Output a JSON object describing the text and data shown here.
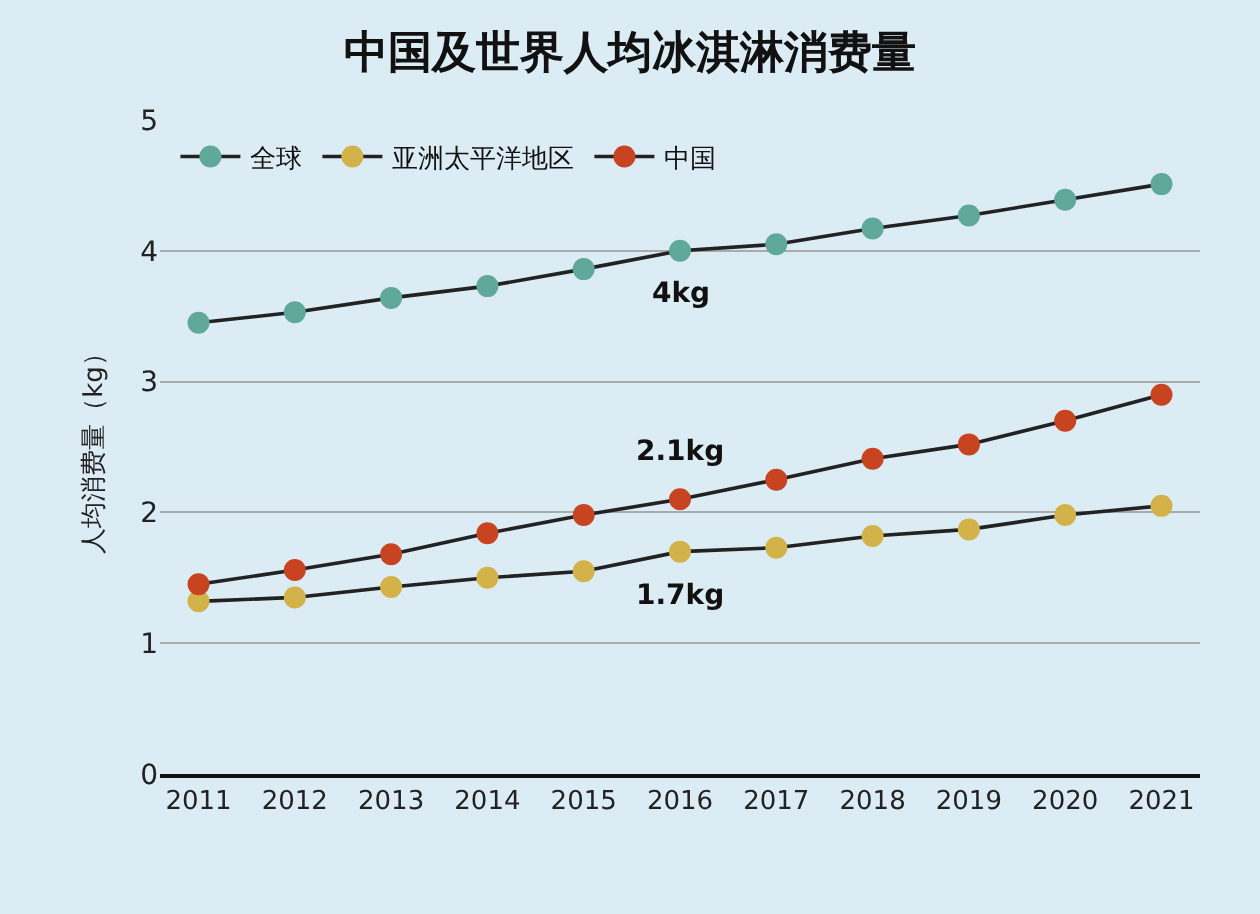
{
  "chart_data": {
    "type": "line",
    "title": "中国及世界人均冰淇淋消费量",
    "ylabel": "人均消费量（kg）",
    "categories": [
      "2011",
      "2012",
      "2013",
      "2014",
      "2015",
      "2016",
      "2017",
      "2018",
      "2019",
      "2020",
      "2021"
    ],
    "series": [
      {
        "name": "全球",
        "color": "#5fa89a",
        "values": [
          3.45,
          3.53,
          3.64,
          3.73,
          3.86,
          4.0,
          4.05,
          4.17,
          4.27,
          4.39,
          4.51
        ]
      },
      {
        "name": "亚洲太平洋地区",
        "color": "#d4b24a",
        "values": [
          1.32,
          1.35,
          1.43,
          1.5,
          1.55,
          1.7,
          1.73,
          1.82,
          1.87,
          1.98,
          2.05
        ]
      },
      {
        "name": "中国",
        "color": "#c8431f",
        "values": [
          1.45,
          1.56,
          1.68,
          1.84,
          1.98,
          2.1,
          2.25,
          2.41,
          2.52,
          2.7,
          2.9
        ]
      }
    ],
    "annotations": [
      {
        "text": "4kg",
        "x": "2016",
        "y": 4
      },
      {
        "text": "1.7kg",
        "x": "2016",
        "y": 1.7
      },
      {
        "text": "2.1kg",
        "x": "2016",
        "y": 2.1
      }
    ],
    "ylim": [
      0,
      5
    ],
    "yticks": [
      0,
      1,
      2,
      3,
      4,
      5
    ],
    "grid": "y",
    "legend": "top left",
    "marker": "circle",
    "line_style": "solid"
  }
}
